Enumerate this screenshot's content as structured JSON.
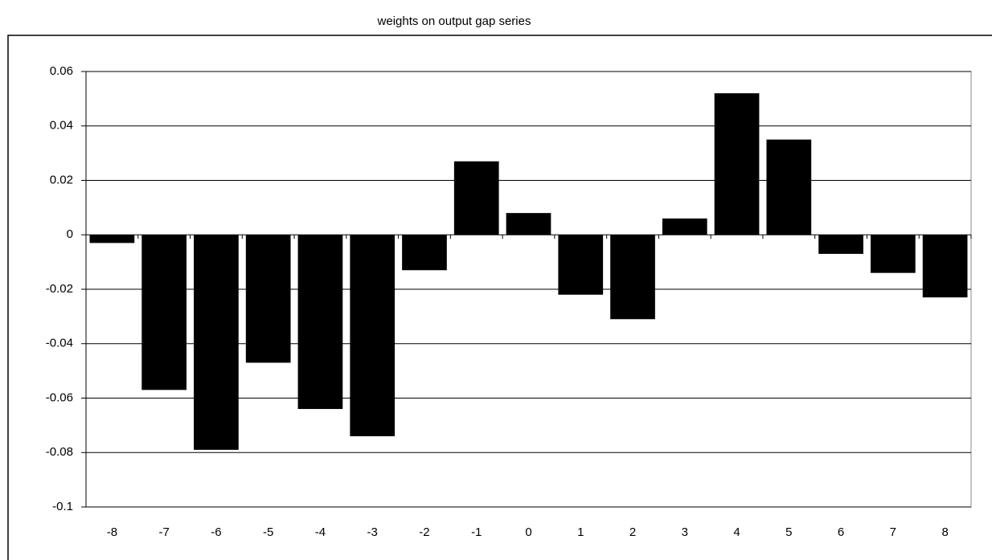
{
  "chart_data": {
    "type": "bar",
    "title": "weights on output gap series",
    "categories": [
      "-8",
      "-7",
      "-6",
      "-5",
      "-4",
      "-3",
      "-2",
      "-1",
      "0",
      "1",
      "2",
      "3",
      "4",
      "5",
      "6",
      "7",
      "8"
    ],
    "values": [
      -0.003,
      -0.057,
      -0.079,
      -0.047,
      -0.064,
      -0.074,
      -0.013,
      0.027,
      0.008,
      -0.022,
      -0.031,
      0.006,
      0.052,
      0.035,
      -0.007,
      -0.014,
      -0.023
    ],
    "color": "#000000",
    "ylim": [
      -0.1,
      0.06
    ],
    "yticks": [
      -0.1,
      -0.08,
      -0.06,
      -0.04,
      -0.02,
      0,
      0.02,
      0.04,
      0.06
    ],
    "grid": true
  }
}
